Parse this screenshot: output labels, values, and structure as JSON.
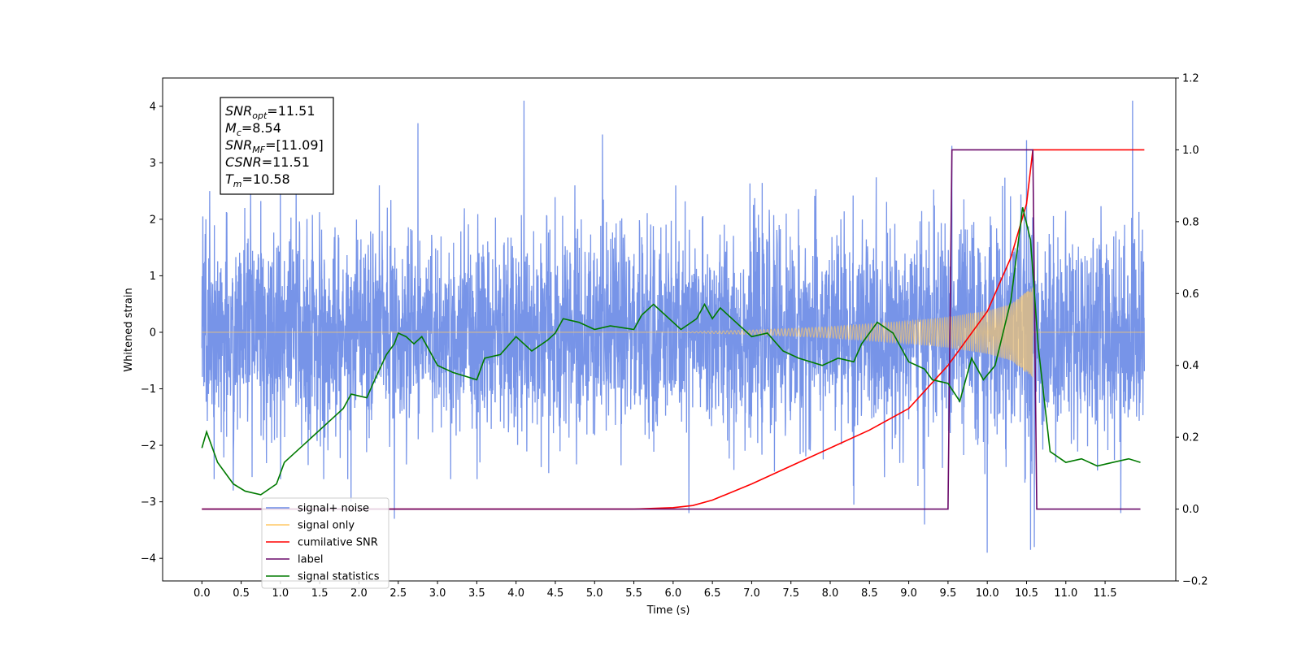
{
  "chart_data": {
    "type": "line",
    "xlabel": "Time (s)",
    "ylabel": "Whitened strain",
    "xlim": [
      -0.5,
      12.4
    ],
    "ylim_left": [
      -4.4,
      4.5
    ],
    "ylim_right": [
      -0.2,
      1.2
    ],
    "x_ticks": [
      0.0,
      0.5,
      1.0,
      1.5,
      2.0,
      2.5,
      3.0,
      3.5,
      4.0,
      4.5,
      5.0,
      5.5,
      6.0,
      6.5,
      7.0,
      7.5,
      8.0,
      8.5,
      9.0,
      9.5,
      10.0,
      10.5,
      11.0,
      11.5
    ],
    "x_tick_labels": [
      "0.0",
      "0.5",
      "1.0",
      "1.5",
      "2.0",
      "2.5",
      "3.0",
      "3.5",
      "4.0",
      "4.5",
      "5.0",
      "5.5",
      "6.0",
      "6.5",
      "7.0",
      "7.5",
      "8.0",
      "8.5",
      "9.0",
      "9.5",
      "10.0",
      "10.5",
      "11.0",
      "11.5"
    ],
    "y_left_ticks": [
      -4,
      -3,
      -2,
      -1,
      0,
      1,
      2,
      3,
      4
    ],
    "y_left_tick_labels": [
      "−4",
      "−3",
      "−2",
      "−1",
      "0",
      "1",
      "2",
      "3",
      "4"
    ],
    "y_right_ticks": [
      -0.2,
      0.0,
      0.2,
      0.4,
      0.6,
      0.8,
      1.0,
      1.2
    ],
    "y_right_tick_labels": [
      "−0.2",
      "0.0",
      "0.2",
      "0.4",
      "0.6",
      "0.8",
      "1.0",
      "1.2"
    ],
    "legend": {
      "placement": "lower-left",
      "entries": [
        {
          "label": "signal+ noise",
          "color": "#6b8be6"
        },
        {
          "label": "signal only",
          "color": "#ffc966"
        },
        {
          "label": "cumilative SNR",
          "color": "#ff0000"
        },
        {
          "label": "label",
          "color": "#6a0a6a"
        },
        {
          "label": "signal statistics",
          "color": "#007a00"
        }
      ]
    },
    "series": [
      {
        "name": "signal+ noise",
        "axis": "left",
        "color": "#6b8be6",
        "x_range": [
          0.0,
          12.0
        ],
        "noise_std": 0.9,
        "peaks": [
          [
            0.05,
            2.0
          ],
          [
            0.1,
            2.5
          ],
          [
            1.0,
            3.1
          ],
          [
            1.2,
            3.2
          ],
          [
            2.45,
            3.3
          ],
          [
            2.75,
            3.7
          ],
          [
            4.1,
            4.1
          ],
          [
            5.1,
            3.5
          ],
          [
            6.2,
            3.2
          ],
          [
            8.3,
            3.0
          ],
          [
            9.55,
            3.3
          ],
          [
            10.0,
            3.2
          ],
          [
            10.5,
            3.4
          ],
          [
            11.85,
            4.1
          ],
          [
            0.4,
            -2.8
          ],
          [
            1.9,
            -3.0
          ],
          [
            2.45,
            -3.3
          ],
          [
            6.2,
            -3.2
          ],
          [
            8.3,
            -3.05
          ],
          [
            9.2,
            -3.4
          ],
          [
            10.0,
            -3.9
          ],
          [
            10.55,
            -3.85
          ],
          [
            10.6,
            -3.8
          ],
          [
            11.7,
            -3.2
          ]
        ]
      },
      {
        "name": "signal only",
        "axis": "left",
        "color": "#ffc966",
        "x_range": [
          6.0,
          10.58
        ],
        "envelope": [
          [
            6.0,
            0.0
          ],
          [
            7.0,
            0.04
          ],
          [
            8.0,
            0.1
          ],
          [
            8.5,
            0.15
          ],
          [
            9.0,
            0.2
          ],
          [
            9.5,
            0.27
          ],
          [
            10.0,
            0.38
          ],
          [
            10.3,
            0.5
          ],
          [
            10.5,
            0.72
          ],
          [
            10.58,
            0.8
          ]
        ]
      },
      {
        "name": "cumilative SNR",
        "axis": "right",
        "color": "#ff0000",
        "points": [
          [
            0.0,
            0.0
          ],
          [
            5.5,
            0.0
          ],
          [
            6.0,
            0.004
          ],
          [
            6.25,
            0.01
          ],
          [
            6.5,
            0.025
          ],
          [
            7.0,
            0.07
          ],
          [
            7.5,
            0.12
          ],
          [
            8.0,
            0.17
          ],
          [
            8.5,
            0.22
          ],
          [
            9.0,
            0.28
          ],
          [
            9.5,
            0.4
          ],
          [
            10.0,
            0.55
          ],
          [
            10.3,
            0.7
          ],
          [
            10.5,
            0.85
          ],
          [
            10.58,
            1.0
          ],
          [
            11.0,
            1.0
          ],
          [
            12.0,
            1.0
          ]
        ]
      },
      {
        "name": "label",
        "axis": "right",
        "color": "#6a0a6a",
        "points": [
          [
            0.0,
            0.0
          ],
          [
            9.5,
            0.0
          ],
          [
            9.55,
            1.0
          ],
          [
            10.58,
            1.0
          ],
          [
            10.63,
            0.0
          ],
          [
            11.95,
            0.0
          ]
        ]
      },
      {
        "name": "signal statistics",
        "axis": "right",
        "color": "#007a00",
        "points": [
          [
            0.0,
            0.17
          ],
          [
            0.06,
            0.215
          ],
          [
            0.2,
            0.13
          ],
          [
            0.4,
            0.07
          ],
          [
            0.55,
            0.05
          ],
          [
            0.75,
            0.04
          ],
          [
            0.95,
            0.07
          ],
          [
            1.05,
            0.13
          ],
          [
            1.2,
            0.16
          ],
          [
            1.4,
            0.2
          ],
          [
            1.6,
            0.24
          ],
          [
            1.8,
            0.28
          ],
          [
            1.9,
            0.32
          ],
          [
            2.1,
            0.31
          ],
          [
            2.2,
            0.36
          ],
          [
            2.35,
            0.43
          ],
          [
            2.45,
            0.46
          ],
          [
            2.5,
            0.49
          ],
          [
            2.6,
            0.48
          ],
          [
            2.7,
            0.46
          ],
          [
            2.8,
            0.48
          ],
          [
            2.9,
            0.44
          ],
          [
            3.0,
            0.4
          ],
          [
            3.2,
            0.38
          ],
          [
            3.5,
            0.36
          ],
          [
            3.6,
            0.42
          ],
          [
            3.8,
            0.43
          ],
          [
            4.0,
            0.48
          ],
          [
            4.2,
            0.44
          ],
          [
            4.4,
            0.47
          ],
          [
            4.5,
            0.49
          ],
          [
            4.6,
            0.53
          ],
          [
            4.8,
            0.52
          ],
          [
            5.0,
            0.5
          ],
          [
            5.2,
            0.51
          ],
          [
            5.5,
            0.5
          ],
          [
            5.6,
            0.54
          ],
          [
            5.75,
            0.57
          ],
          [
            5.9,
            0.54
          ],
          [
            6.1,
            0.5
          ],
          [
            6.3,
            0.53
          ],
          [
            6.4,
            0.57
          ],
          [
            6.5,
            0.53
          ],
          [
            6.6,
            0.56
          ],
          [
            6.8,
            0.52
          ],
          [
            7.0,
            0.48
          ],
          [
            7.2,
            0.49
          ],
          [
            7.4,
            0.44
          ],
          [
            7.6,
            0.42
          ],
          [
            7.9,
            0.4
          ],
          [
            8.1,
            0.42
          ],
          [
            8.3,
            0.41
          ],
          [
            8.4,
            0.46
          ],
          [
            8.6,
            0.52
          ],
          [
            8.8,
            0.49
          ],
          [
            9.0,
            0.41
          ],
          [
            9.2,
            0.39
          ],
          [
            9.3,
            0.36
          ],
          [
            9.5,
            0.35
          ],
          [
            9.65,
            0.3
          ],
          [
            9.8,
            0.42
          ],
          [
            9.95,
            0.36
          ],
          [
            10.1,
            0.4
          ],
          [
            10.3,
            0.58
          ],
          [
            10.45,
            0.84
          ],
          [
            10.55,
            0.75
          ],
          [
            10.65,
            0.45
          ],
          [
            10.8,
            0.16
          ],
          [
            11.0,
            0.13
          ],
          [
            11.2,
            0.14
          ],
          [
            11.4,
            0.12
          ],
          [
            11.6,
            0.13
          ],
          [
            11.8,
            0.14
          ],
          [
            11.95,
            0.13
          ]
        ]
      }
    ],
    "annotation": {
      "lines": [
        {
          "main": "SNR",
          "sub": "opt",
          "value": "=11.51"
        },
        {
          "main": "M",
          "sub": "c",
          "value": "=8.54"
        },
        {
          "main": "SNR",
          "sub": "MF",
          "value": "=[11.09]"
        },
        {
          "main": "CSNR",
          "sub": "",
          "value": "=11.51"
        },
        {
          "main": "T",
          "sub": "m",
          "value": "=10.58"
        }
      ]
    }
  }
}
